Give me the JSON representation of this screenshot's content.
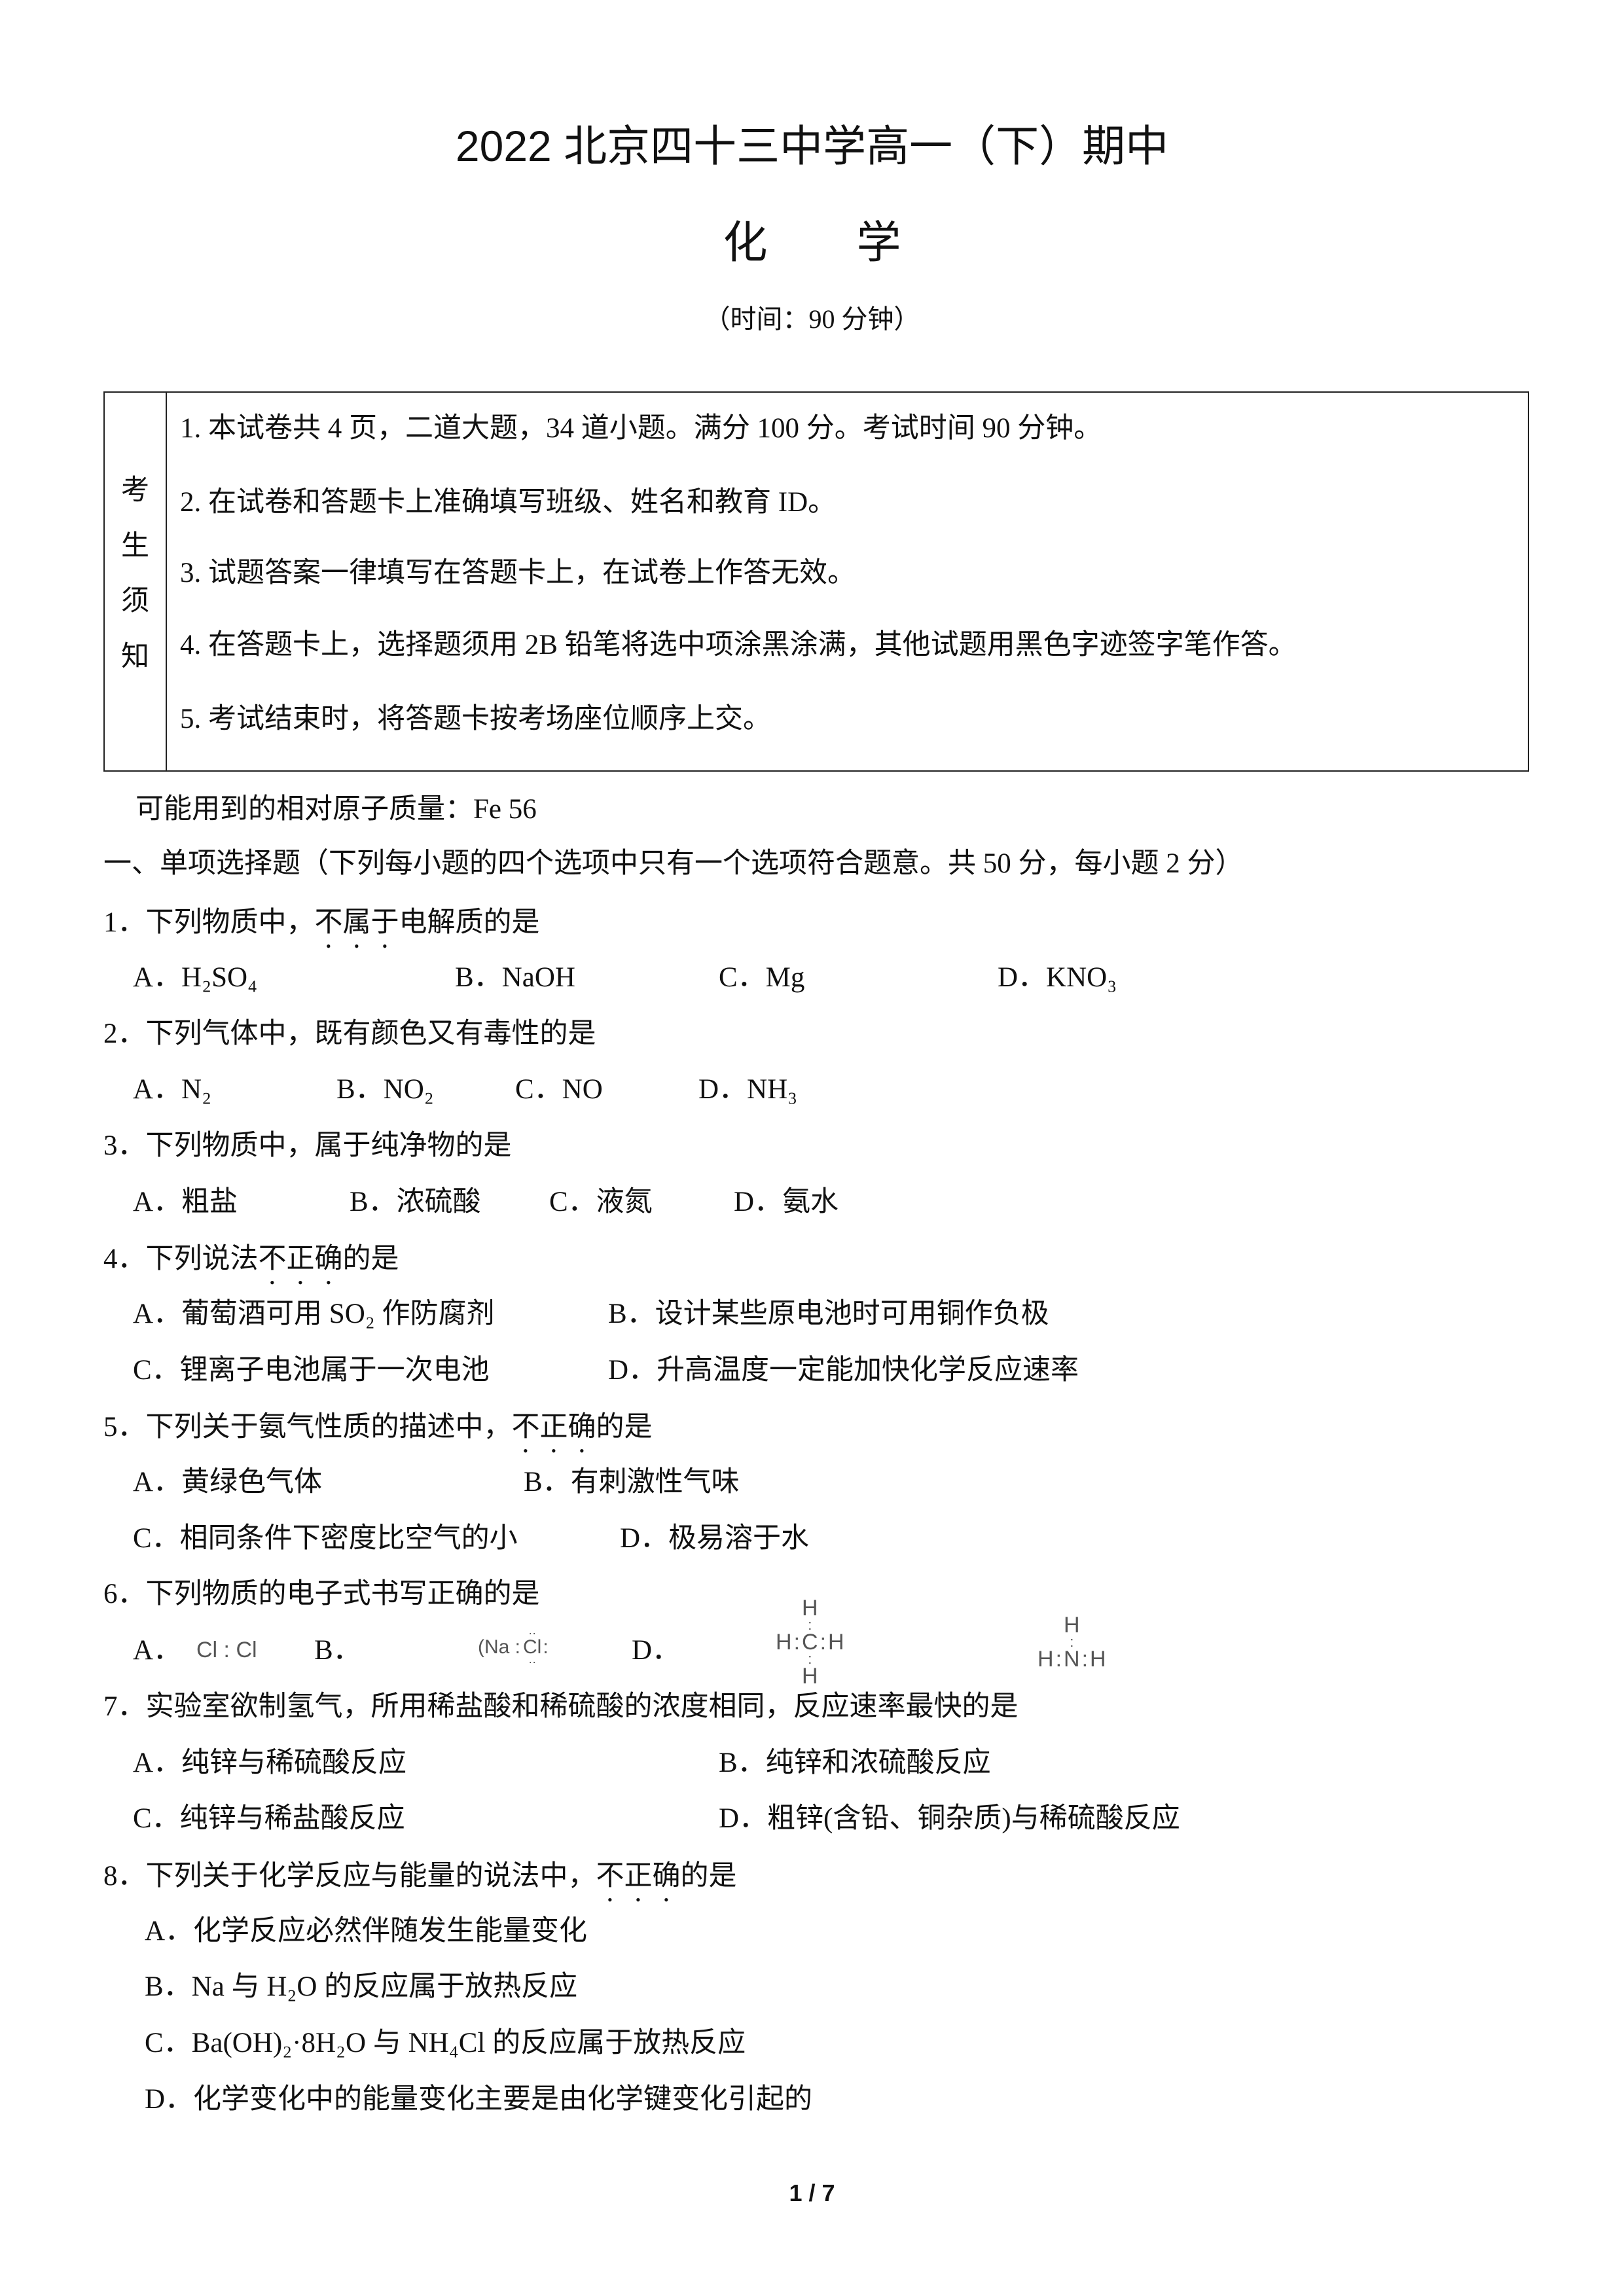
{
  "header": {
    "title": "2022 北京四十三中学高一（下）期中",
    "subject": "化　　学",
    "time": "（时间：90 分钟）"
  },
  "notice": {
    "label": [
      "考",
      "生",
      "须",
      "知"
    ],
    "items": [
      "1. 本试卷共 4 页，二道大题，34 道小题。满分 100 分。考试时间 90 分钟。",
      "2. 在试卷和答题卡上准确填写班级、姓名和教育 ID。",
      "3. 试题答案一律填写在答题卡上，在试卷上作答无效。",
      "4. 在答题卡上，选择题须用 2B 铅笔将选中项涂黑涂满，其他试题用黑色字迹签字笔作答。",
      "5. 考试结束时，将答题卡按考场座位顺序上交。"
    ]
  },
  "atomic_mass": "可能用到的相对原子质量：Fe 56",
  "section1": "一、单项选择题（下列每小题的四个选项中只有一个选项符合题意。共 50 分，每小题 2 分）",
  "questions": [
    {
      "pre": "1．下列物质中，",
      "emph": "不属于",
      "post": "电解质的是",
      "options": [
        "A．H₂SO₄",
        "B．NaOH",
        "C．Mg",
        "D．KNO₃"
      ]
    },
    {
      "pre": "2．下列气体中，既有颜色又有毒性的是",
      "emph": "",
      "post": "",
      "options": [
        "A．N₂",
        "B．NO₂",
        "C．NO",
        "D．NH₃"
      ]
    },
    {
      "pre": "3．下列物质中，属于纯净物的是",
      "emph": "",
      "post": "",
      "options": [
        "A．粗盐",
        "B．浓硫酸",
        "C．液氮",
        "D．氨水"
      ]
    },
    {
      "pre": "4．下列说法",
      "emph": "不正确",
      "post": "的是",
      "options": [
        "A．葡萄酒可用 SO₂ 作防腐剂",
        "B．设计某些原电池时可用铜作负极",
        "C．锂离子电池属于一次电池",
        "D．升高温度一定能加快化学反应速率"
      ]
    },
    {
      "pre": "5．下列关于氨气性质的描述中，",
      "emph": "不正确",
      "post": "的是",
      "options": [
        "A．黄绿色气体",
        "B．有刺激性气味",
        "C．相同条件下密度比空气的小",
        "D．极易溶于水"
      ]
    },
    {
      "pre": "6．下列物质的电子式书写正确的是",
      "emph": "",
      "post": "",
      "options": [
        "A．",
        "B．",
        "D．"
      ],
      "formulas": {
        "a": "Cl : Cl",
        "b_na": "(Na :",
        "b_cl": "Cl",
        "h": "H",
        "c": "C",
        "n": "N"
      }
    },
    {
      "pre": "7．实验室欲制氢气，所用稀盐酸和稀硫酸的浓度相同，反应速率最快的是",
      "emph": "",
      "post": "",
      "options": [
        "A．纯锌与稀硫酸反应",
        "B．纯锌和浓硫酸反应",
        "C．纯锌与稀盐酸反应",
        "D．粗锌(含铅、铜杂质)与稀硫酸反应"
      ]
    },
    {
      "pre": "8．下列关于化学反应与能量的说法中，",
      "emph": "不正确",
      "post": "的是",
      "options": [
        "A．化学反应必然伴随发生能量变化",
        "B．Na 与 H₂O 的反应属于放热反应",
        "C．Ba(OH)₂·8H₂O 与 NH₄Cl 的反应属于放热反应",
        "D．化学变化中的能量变化主要是由化学键变化引起的"
      ]
    }
  ],
  "footer": {
    "page": "1 / 7"
  }
}
